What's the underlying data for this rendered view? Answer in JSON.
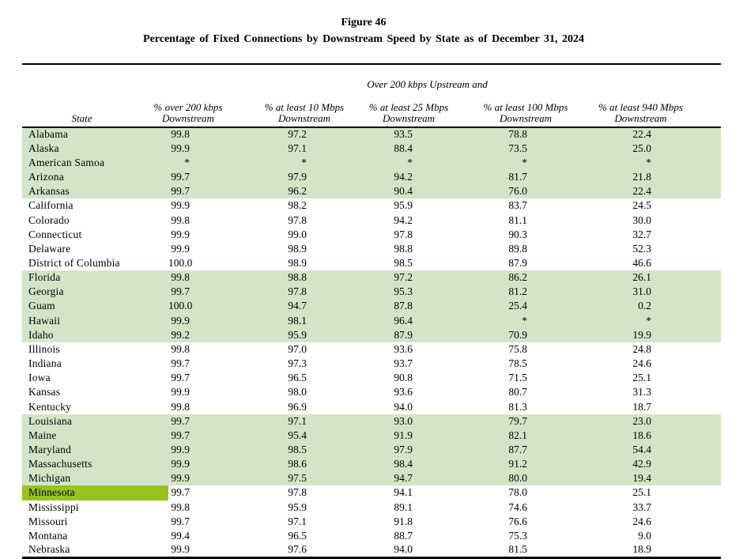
{
  "header": {
    "figure_label": "Figure 46",
    "title": "Percentage of Fixed Connections by Downstream Speed by State as of December 31, 2024"
  },
  "table": {
    "group_header": "Over 200 kbps Upstream and",
    "columns": [
      {
        "label": "State"
      },
      {
        "label": "% over 200 kbps\nDownstream"
      },
      {
        "label": "% at least 10 Mbps\nDownstream"
      },
      {
        "label": "% at least 25 Mbps\nDownstream"
      },
      {
        "label": "% at least 100 Mbps\nDownstream"
      },
      {
        "label": "% at least 940 Mbps\nDownstream"
      }
    ],
    "band_color": "#d3e5c7",
    "highlight_color": "#98c21d",
    "highlighted_state": "Minnesota",
    "no_data_marker": "*",
    "rows": [
      [
        "Alabama",
        "99.8",
        "97.2",
        "93.5",
        "78.8",
        "22.4"
      ],
      [
        "Alaska",
        "99.9",
        "97.1",
        "88.4",
        "73.5",
        "25.0"
      ],
      [
        "American Samoa",
        "*",
        "*",
        "*",
        "*",
        "*"
      ],
      [
        "Arizona",
        "99.7",
        "97.9",
        "94.2",
        "81.7",
        "21.8"
      ],
      [
        "Arkansas",
        "99.7",
        "96.2",
        "90.4",
        "76.0",
        "22.4"
      ],
      [
        "California",
        "99.9",
        "98.2",
        "95.9",
        "83.7",
        "24.5"
      ],
      [
        "Colorado",
        "99.8",
        "97.8",
        "94.2",
        "81.1",
        "30.0"
      ],
      [
        "Connecticut",
        "99.9",
        "99.0",
        "97.8",
        "90.3",
        "32.7"
      ],
      [
        "Delaware",
        "99.9",
        "98.9",
        "98.8",
        "89.8",
        "52.3"
      ],
      [
        "District of Columbia",
        "100.0",
        "98.9",
        "98.5",
        "87.9",
        "46.6"
      ],
      [
        "Florida",
        "99.8",
        "98.8",
        "97.2",
        "86.2",
        "26.1"
      ],
      [
        "Georgia",
        "99.7",
        "97.8",
        "95.3",
        "81.2",
        "31.0"
      ],
      [
        "Guam",
        "100.0",
        "94.7",
        "87.8",
        "25.4",
        "0.2"
      ],
      [
        "Hawaii",
        "99.9",
        "98.1",
        "96.4",
        "*",
        "*"
      ],
      [
        "Idaho",
        "99.2",
        "95.9",
        "87.9",
        "70.9",
        "19.9"
      ],
      [
        "Illinois",
        "99.8",
        "97.0",
        "93.6",
        "75.8",
        "24.8"
      ],
      [
        "Indiana",
        "99.7",
        "97.3",
        "93.7",
        "78.5",
        "24.6"
      ],
      [
        "Iowa",
        "99.7",
        "96.5",
        "90.8",
        "71.5",
        "25.1"
      ],
      [
        "Kansas",
        "99.9",
        "98.0",
        "93.6",
        "80.7",
        "31.3"
      ],
      [
        "Kentucky",
        "99.8",
        "96.9",
        "94.0",
        "81.3",
        "18.7"
      ],
      [
        "Louisiana",
        "99.7",
        "97.1",
        "93.0",
        "79.7",
        "23.0"
      ],
      [
        "Maine",
        "99.7",
        "95.4",
        "91.9",
        "82.1",
        "18.6"
      ],
      [
        "Maryland",
        "99.9",
        "98.5",
        "97.9",
        "87.7",
        "54.4"
      ],
      [
        "Massachusetts",
        "99.9",
        "98.6",
        "98.4",
        "91.2",
        "42.9"
      ],
      [
        "Michigan",
        "99.9",
        "97.5",
        "94.7",
        "80.0",
        "19.4"
      ],
      [
        "Minnesota",
        "99.7",
        "97.8",
        "94.1",
        "78.0",
        "25.1"
      ],
      [
        "Mississippi",
        "99.8",
        "95.9",
        "89.1",
        "74.6",
        "33.7"
      ],
      [
        "Missouri",
        "99.7",
        "97.1",
        "91.8",
        "76.6",
        "24.6"
      ],
      [
        "Montana",
        "99.4",
        "96.5",
        "88.7",
        "75.3",
        "9.0"
      ],
      [
        "Nebraska",
        "99.9",
        "97.6",
        "94.0",
        "81.5",
        "18.9"
      ]
    ]
  }
}
